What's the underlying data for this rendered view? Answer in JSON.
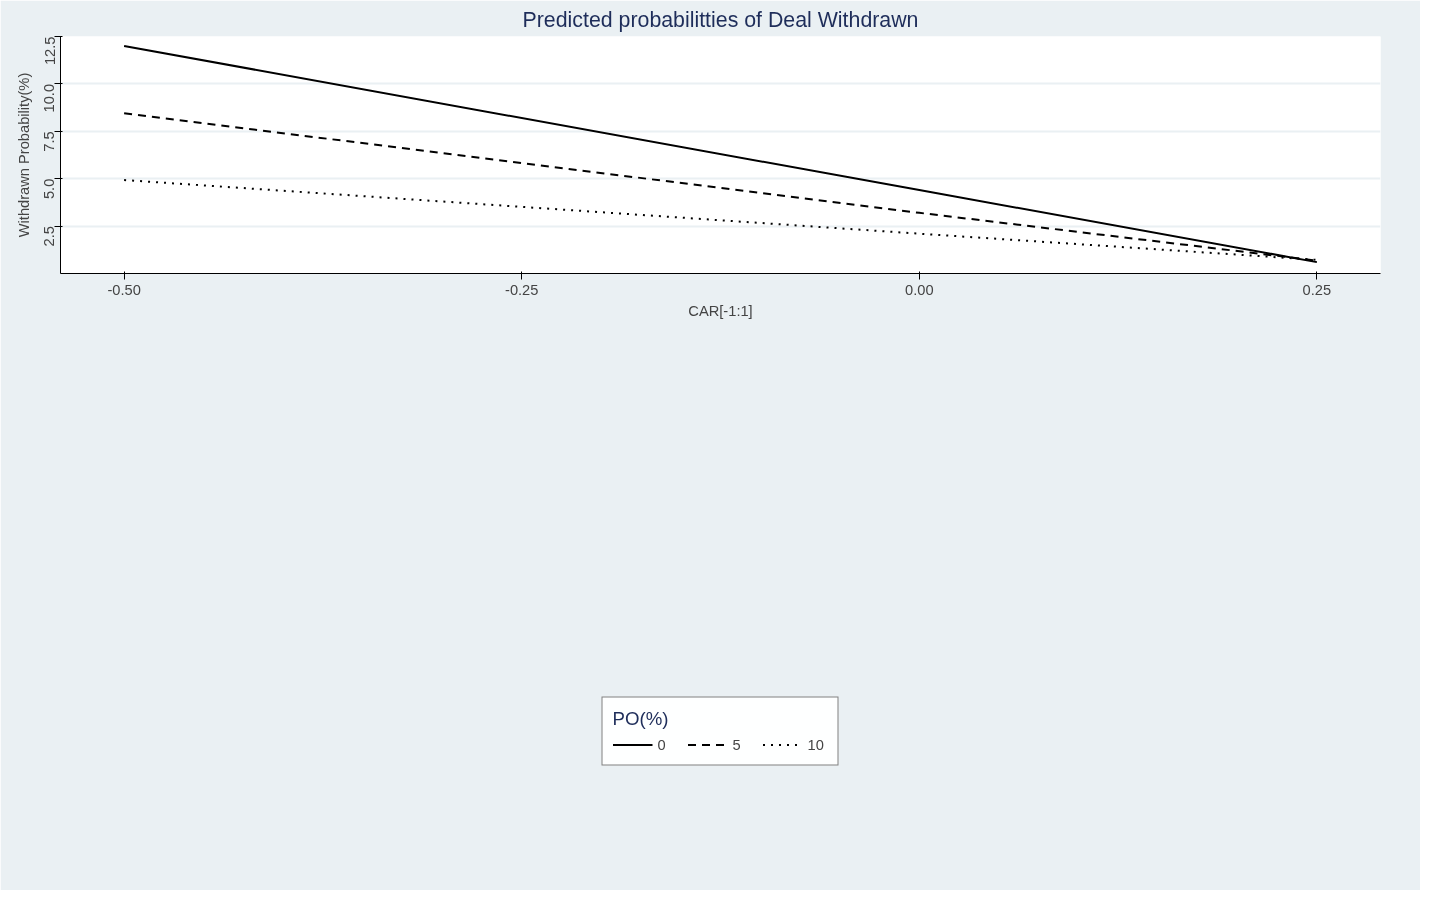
{
  "chart_data": {
    "type": "line",
    "title": "Predicted probabilitties of Deal Withdrawn",
    "xlabel": "CAR[-1:1]",
    "ylabel": "Withdrawn Probability(%)",
    "legend_title": "PO(%)",
    "x": [
      -0.5,
      0,
      0.25
    ],
    "series": [
      {
        "name": "0",
        "color": "#000000",
        "line_style": "solid",
        "values": [
          12.0,
          4.4,
          0.6
        ]
      },
      {
        "name": "5",
        "color": "#000000",
        "line_style": "dashed",
        "values": [
          8.45,
          3.2,
          0.68
        ]
      },
      {
        "name": "10",
        "color": "#000000",
        "line_style": "dotted",
        "values": [
          4.93,
          2.1,
          0.72
        ]
      }
    ],
    "xlim": [
      -0.54,
      0.29
    ],
    "ylim": [
      0,
      12.5
    ],
    "xticks": [
      {
        "value": -0.5,
        "label": "-0.50"
      },
      {
        "value": -0.25,
        "label": "-0.25"
      },
      {
        "value": 0,
        "label": "0.00"
      },
      0.25
    ],
    "yticks": [
      2.5,
      {
        "value": 5,
        "label": "5.0"
      },
      7.5,
      {
        "value": 10,
        "label": "10.0"
      },
      12.5
    ],
    "grid": "y",
    "legend": "bottom",
    "marker": "none"
  }
}
